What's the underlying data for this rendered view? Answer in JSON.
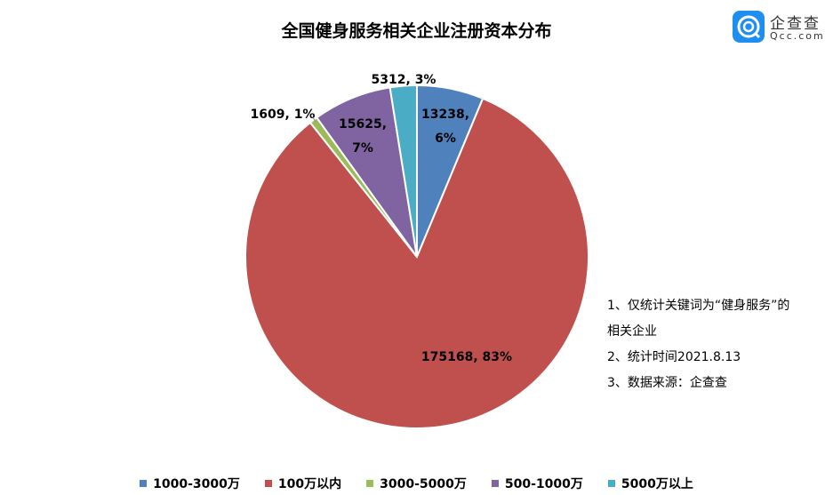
{
  "chart_data": {
    "type": "pie",
    "title": "全国健身服务相关企业注册资本分布",
    "start_angle": "top, clockwise",
    "slices": [
      {
        "label": "1000-3000万",
        "value": 13238,
        "percent": "6%",
        "color": "#4f81bd"
      },
      {
        "label": "100万以内",
        "value": 175168,
        "percent": "83%",
        "color": "#c0504d"
      },
      {
        "label": "3000-5000万",
        "value": 1609,
        "percent": "1%",
        "color": "#9bbb59"
      },
      {
        "label": "500-1000万",
        "value": 15625,
        "percent": "7%",
        "color": "#8064a2"
      },
      {
        "label": "5000万以上",
        "value": 5312,
        "percent": "3%",
        "color": "#4bacc6"
      }
    ],
    "legend_placement": "bottom"
  },
  "notes": [
    "1、仅统计关键词为“健身服务”的",
    "相关企业",
    "2、统计时间2021.8.13",
    "3、数据来源：企查查"
  ],
  "logo": {
    "cn": "企查查",
    "en": "Qcc.com"
  }
}
